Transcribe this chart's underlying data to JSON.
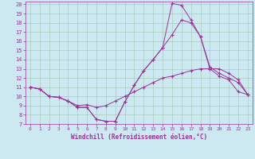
{
  "xlabel": "Windchill (Refroidissement éolien,°C)",
  "bg_color": "#cce8f0",
  "grid_color": "#aaccbb",
  "line_color": "#993399",
  "spine_color": "#993399",
  "xlim": [
    -0.5,
    23.5
  ],
  "ylim": [
    7,
    20.3
  ],
  "xticks": [
    0,
    1,
    2,
    3,
    4,
    5,
    6,
    7,
    8,
    9,
    10,
    11,
    12,
    13,
    14,
    15,
    16,
    17,
    18,
    19,
    20,
    21,
    22,
    23
  ],
  "yticks": [
    7,
    8,
    9,
    10,
    11,
    12,
    13,
    14,
    15,
    16,
    17,
    18,
    19,
    20
  ],
  "curve1_x": [
    0,
    1,
    2,
    3,
    4,
    5,
    6,
    7,
    8,
    9,
    10,
    11,
    12,
    13,
    14,
    15,
    16,
    17,
    18,
    19,
    20,
    21,
    22,
    23
  ],
  "curve1_y": [
    11,
    10.8,
    10.0,
    9.9,
    9.5,
    8.8,
    8.8,
    7.5,
    7.3,
    7.3,
    9.4,
    11.2,
    12.8,
    14.0,
    15.3,
    20.1,
    19.9,
    18.3,
    16.5,
    13.2,
    12.5,
    12.0,
    11.5,
    10.2
  ],
  "curve2_x": [
    0,
    1,
    2,
    3,
    4,
    5,
    6,
    7,
    8,
    9,
    10,
    11,
    12,
    13,
    14,
    15,
    16,
    17,
    18,
    19,
    20,
    21,
    22,
    23
  ],
  "curve2_y": [
    11,
    10.8,
    10.0,
    9.9,
    9.5,
    8.8,
    8.8,
    7.5,
    7.3,
    7.3,
    9.4,
    11.2,
    12.8,
    14.0,
    15.3,
    16.7,
    18.3,
    18.0,
    16.5,
    13.0,
    12.2,
    11.8,
    10.5,
    10.2
  ],
  "curve3_x": [
    0,
    1,
    2,
    3,
    4,
    5,
    6,
    7,
    8,
    9,
    10,
    11,
    12,
    13,
    14,
    15,
    16,
    17,
    18,
    19,
    20,
    21,
    22,
    23
  ],
  "curve3_y": [
    11,
    10.8,
    10.0,
    9.9,
    9.5,
    9.0,
    9.1,
    8.8,
    9.0,
    9.5,
    10.0,
    10.5,
    11.0,
    11.5,
    12.0,
    12.2,
    12.5,
    12.8,
    13.0,
    13.0,
    13.0,
    12.5,
    11.8,
    10.2
  ]
}
